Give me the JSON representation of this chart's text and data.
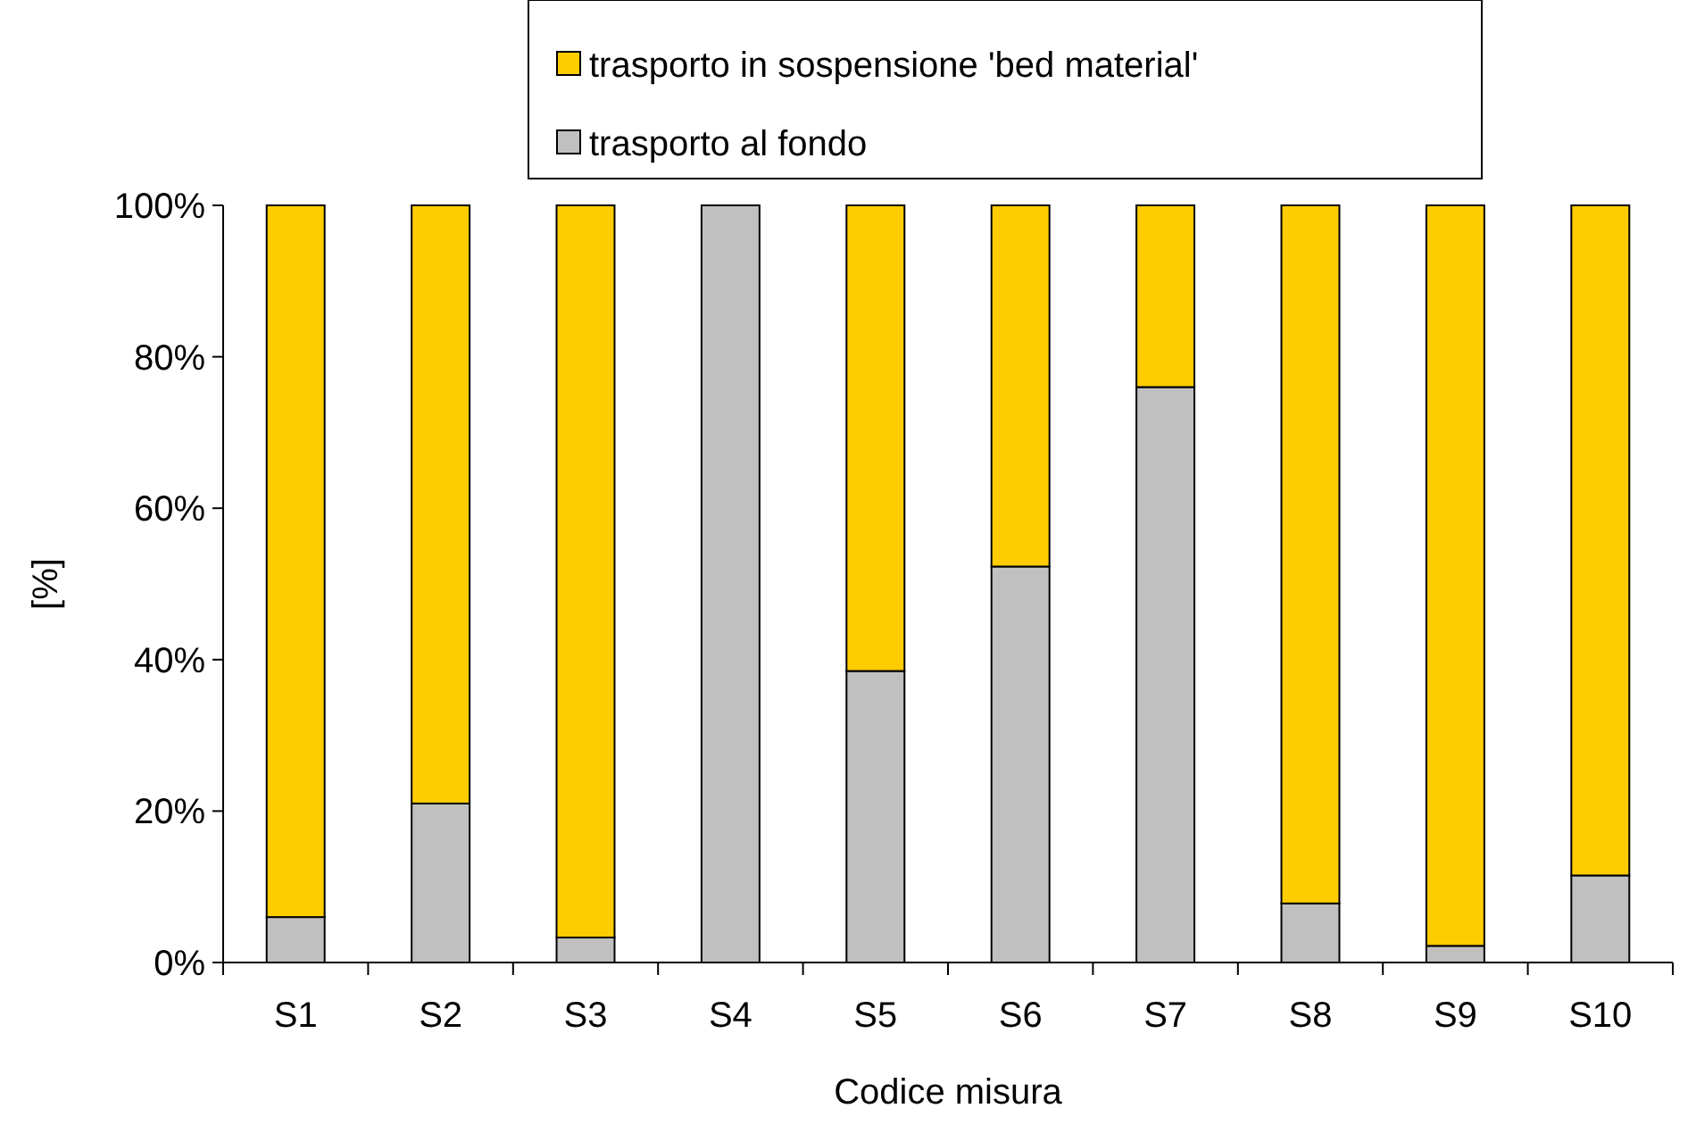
{
  "chart_data": {
    "type": "bar",
    "stacked": true,
    "xlabel": "Codice misura",
    "ylabel": "[%]",
    "categories": [
      "S1",
      "S2",
      "S3",
      "S4",
      "S5",
      "S6",
      "S7",
      "S8",
      "S9",
      "S10"
    ],
    "series": [
      {
        "name": "trasporto al fondo",
        "color": "#c0c0c0",
        "values": [
          6,
          21,
          3.3,
          100,
          38.5,
          52.3,
          76,
          7.8,
          2.2,
          11.5
        ]
      },
      {
        "name": "trasporto in sospensione 'bed material'",
        "color": "#ffcc00",
        "values": [
          94,
          79,
          96.7,
          0,
          61.5,
          47.7,
          24,
          92.2,
          97.8,
          88.5
        ]
      }
    ],
    "ylim": [
      0,
      100
    ],
    "yticks": [
      {
        "value": 0,
        "label": "0%"
      },
      {
        "value": 20,
        "label": "20%"
      },
      {
        "value": 40,
        "label": "40%"
      },
      {
        "value": 60,
        "label": "60%"
      },
      {
        "value": 80,
        "label": "80%"
      },
      {
        "value": 100,
        "label": "100%"
      }
    ],
    "legend": "top"
  }
}
